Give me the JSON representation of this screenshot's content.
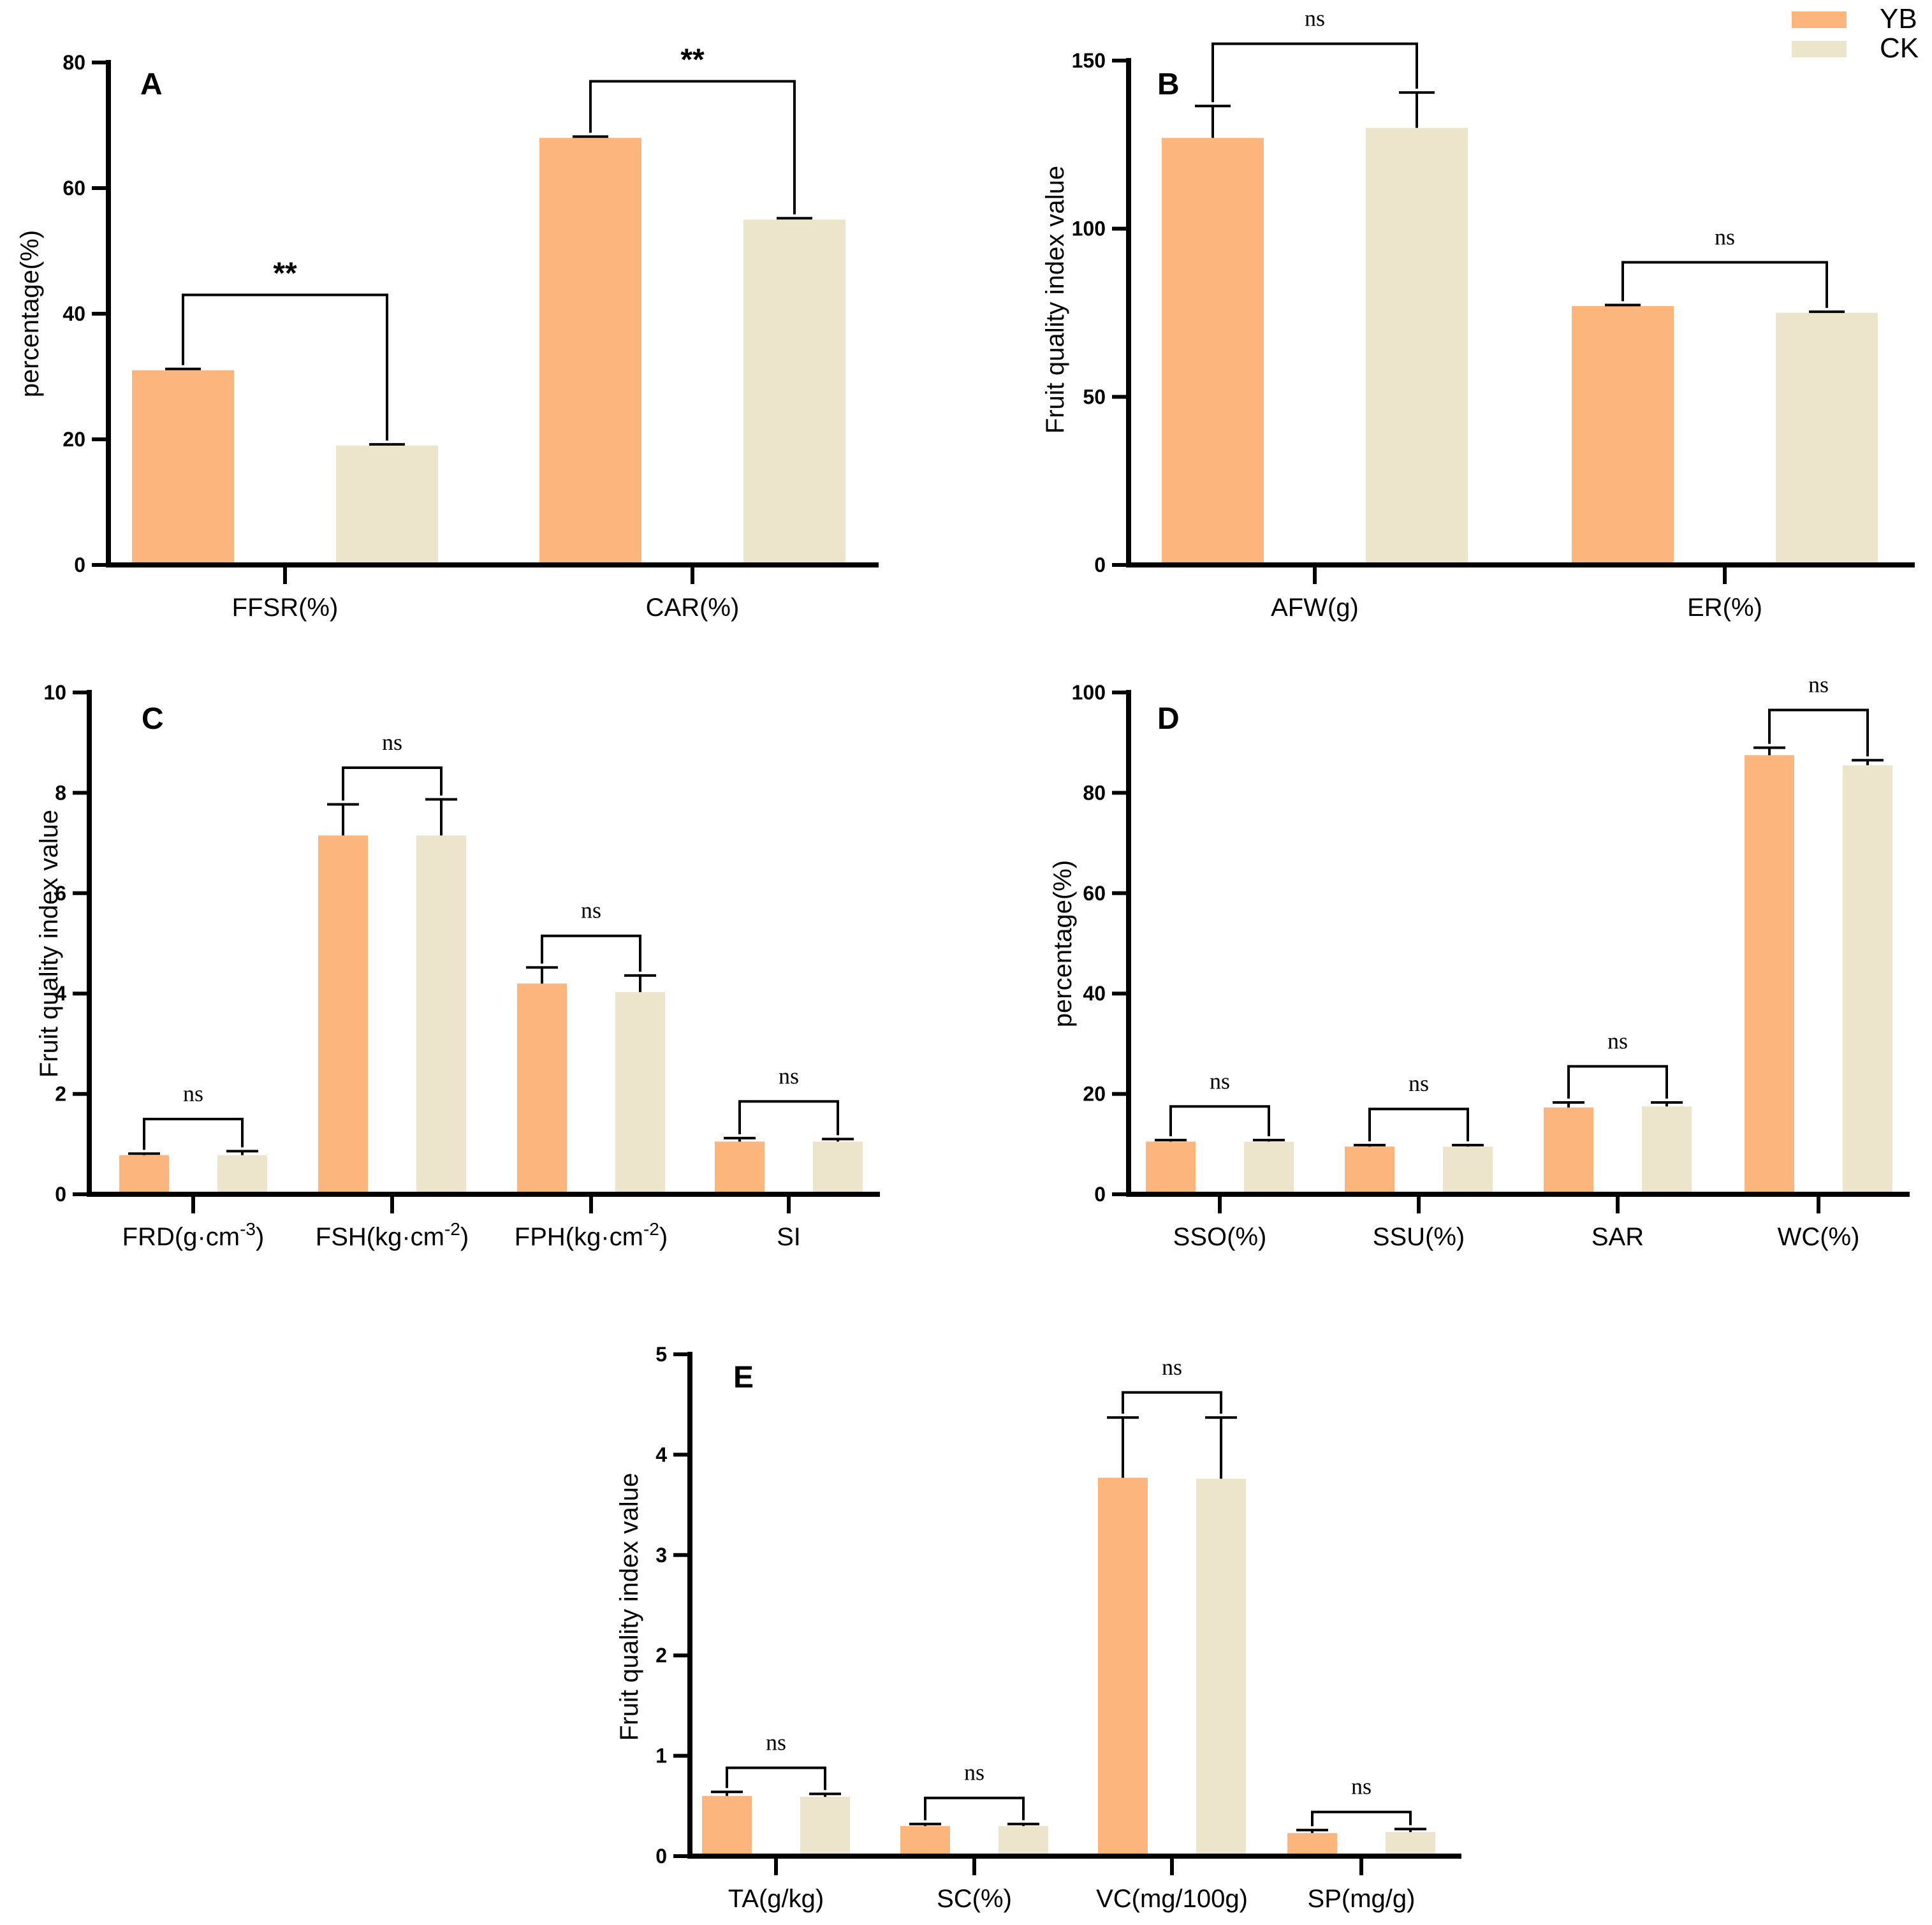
{
  "legend": {
    "items": [
      {
        "name": "YB",
        "color": "#FDB57E"
      },
      {
        "name": "CK",
        "color": "#ECE5CB"
      }
    ]
  },
  "chart_data": [
    {
      "panel": "A",
      "type": "bar",
      "ylabel": "percentage(%)",
      "ylim": [
        0,
        80
      ],
      "yticks": [
        0,
        20,
        40,
        60,
        80
      ],
      "categories": [
        "FFSR(%)",
        "CAR(%)"
      ],
      "series": [
        {
          "name": "YB",
          "values": [
            31,
            68
          ],
          "errors": [
            0.2,
            0.2
          ]
        },
        {
          "name": "CK",
          "values": [
            19,
            55
          ],
          "errors": [
            0.2,
            0.2
          ]
        }
      ],
      "significance": [
        "**",
        "**"
      ],
      "sig_bracket_y": [
        43,
        77
      ]
    },
    {
      "panel": "B",
      "type": "bar",
      "ylabel": "Fruit quality index value",
      "ylim": [
        0,
        150
      ],
      "yticks": [
        0,
        50,
        100,
        150
      ],
      "categories": [
        "AFW(g)",
        "ER(%)"
      ],
      "series": [
        {
          "name": "YB",
          "values": [
            127,
            77
          ],
          "errors": [
            9.5,
            0.3
          ]
        },
        {
          "name": "CK",
          "values": [
            130,
            75
          ],
          "errors": [
            10.5,
            0.3
          ]
        }
      ],
      "significance": [
        "ns",
        "ns"
      ],
      "sig_bracket_y": [
        155,
        90
      ]
    },
    {
      "panel": "C",
      "type": "bar",
      "ylabel": "Fruit quality index value",
      "ylim": [
        0,
        10
      ],
      "yticks": [
        0,
        2,
        4,
        6,
        8,
        10
      ],
      "categories": [
        "FRD(g·cm-3)",
        "FSH(kg·cm-2)",
        "FPH(kg·cm-2)",
        "SI"
      ],
      "category_labels": [
        {
          "base": "FRD(g·cm",
          "sup": "-3",
          "end": ")"
        },
        {
          "base": "FSH(kg·cm",
          "sup": "-2",
          "end": ")"
        },
        {
          "base": "FPH(kg·cm",
          "sup": "-2",
          "end": ")"
        },
        {
          "base": "SI",
          "sup": "",
          "end": ""
        }
      ],
      "series": [
        {
          "name": "YB",
          "values": [
            0.78,
            7.15,
            4.2,
            1.05
          ],
          "errors": [
            0.03,
            0.62,
            0.32,
            0.07
          ]
        },
        {
          "name": "CK",
          "values": [
            0.78,
            7.15,
            4.03,
            1.05
          ],
          "errors": [
            0.08,
            0.72,
            0.33,
            0.05
          ]
        }
      ],
      "significance": [
        "ns",
        "ns",
        "ns",
        "ns"
      ],
      "sig_bracket_y": [
        1.5,
        8.5,
        5.15,
        1.85
      ]
    },
    {
      "panel": "D",
      "type": "bar",
      "ylabel": "percentage(%)",
      "ylim": [
        0,
        100
      ],
      "yticks": [
        0,
        20,
        40,
        60,
        80,
        100
      ],
      "categories": [
        "SSO(%)",
        "SSU(%)",
        "SAR",
        "WC(%)"
      ],
      "series": [
        {
          "name": "YB",
          "values": [
            10.5,
            9.5,
            17.3,
            87.5
          ],
          "errors": [
            0.3,
            0.3,
            1.0,
            1.5
          ]
        },
        {
          "name": "CK",
          "values": [
            10.5,
            9.5,
            17.5,
            85.5
          ],
          "errors": [
            0.3,
            0.3,
            0.8,
            1.0
          ]
        }
      ],
      "significance": [
        "ns",
        "ns",
        "ns",
        "ns"
      ],
      "sig_bracket_y": [
        17.5,
        17.0,
        25.5,
        96.5
      ]
    },
    {
      "panel": "E",
      "type": "bar",
      "ylabel": "Fruit quality index value",
      "ylim": [
        0,
        5
      ],
      "yticks": [
        0,
        1,
        2,
        3,
        4,
        5
      ],
      "categories": [
        "TA(g/kg)",
        "SC(%)",
        "VC(mg/100g)",
        "SP(mg/g)"
      ],
      "series": [
        {
          "name": "YB",
          "values": [
            0.6,
            0.3,
            3.77,
            0.23
          ],
          "errors": [
            0.04,
            0.02,
            0.6,
            0.03
          ]
        },
        {
          "name": "CK",
          "values": [
            0.59,
            0.3,
            3.76,
            0.24
          ],
          "errors": [
            0.03,
            0.02,
            0.61,
            0.03
          ]
        }
      ],
      "significance": [
        "ns",
        "ns",
        "ns",
        "ns"
      ],
      "sig_bracket_y": [
        0.88,
        0.58,
        4.62,
        0.44
      ]
    }
  ]
}
